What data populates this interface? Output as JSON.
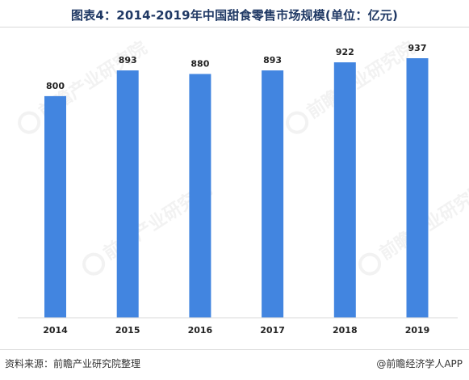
{
  "title": "图表4：2014-2019年中国甜食零售市场规模(单位：亿元)",
  "footer": {
    "source": "资料来源：前瞻产业研究院整理",
    "credit": "@前瞻经济学人APP"
  },
  "watermark": {
    "text": "前瞻产业研究院"
  },
  "colors": {
    "bar": "#4285e0",
    "title": "#1f3864"
  },
  "chart_data": {
    "type": "bar",
    "title": "图表4：2014-2019年中国甜食零售市场规模(单位：亿元)",
    "categories": [
      "2014",
      "2015",
      "2016",
      "2017",
      "2018",
      "2019"
    ],
    "values": [
      800,
      893,
      880,
      893,
      922,
      937
    ],
    "xlabel": "",
    "ylabel": "",
    "ylim": [
      0,
      1045
    ],
    "grid": false,
    "legend": "none"
  }
}
